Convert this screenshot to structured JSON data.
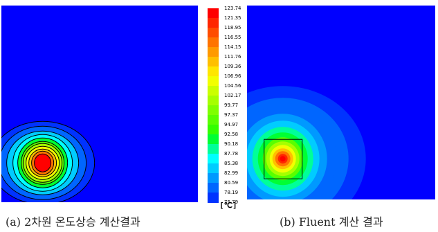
{
  "chart_data": [
    {
      "type": "heatmap",
      "caption": "(a) 2차원 온도상승 계산결과",
      "value_range": [
        75.79,
        123.74
      ],
      "hotspot": {
        "x": 0.21,
        "y": 0.2,
        "peak": 123.74
      }
    },
    {
      "type": "heatmap",
      "caption": "(b) Fluent 계산 결과",
      "value_range": [
        75.79,
        123.74
      ],
      "hotspot": {
        "x": 0.19,
        "y": 0.21,
        "peak": 123.74
      },
      "source_box": true
    }
  ],
  "colorbar": {
    "unit": "[℃]",
    "levels": [
      "123.74",
      "121.35",
      "118.95",
      "116.55",
      "114.15",
      "111.76",
      "109.36",
      "106.96",
      "104.56",
      "102.17",
      "99.77",
      "97.37",
      "94.97",
      "92.58",
      "90.18",
      "87.78",
      "85.38",
      "82.99",
      "80.59",
      "78.19",
      "75.79"
    ],
    "colors": [
      "#ff0000",
      "#ff2600",
      "#ff4c00",
      "#ff7300",
      "#ff9900",
      "#ffbf00",
      "#ffe600",
      "#f2ff00",
      "#cbff00",
      "#a6ff00",
      "#7fff00",
      "#59ff00",
      "#33ff00",
      "#00ff33",
      "#00ff99",
      "#00ffff",
      "#00ccff",
      "#0099ff",
      "#0066ff",
      "#0033ff"
    ]
  }
}
